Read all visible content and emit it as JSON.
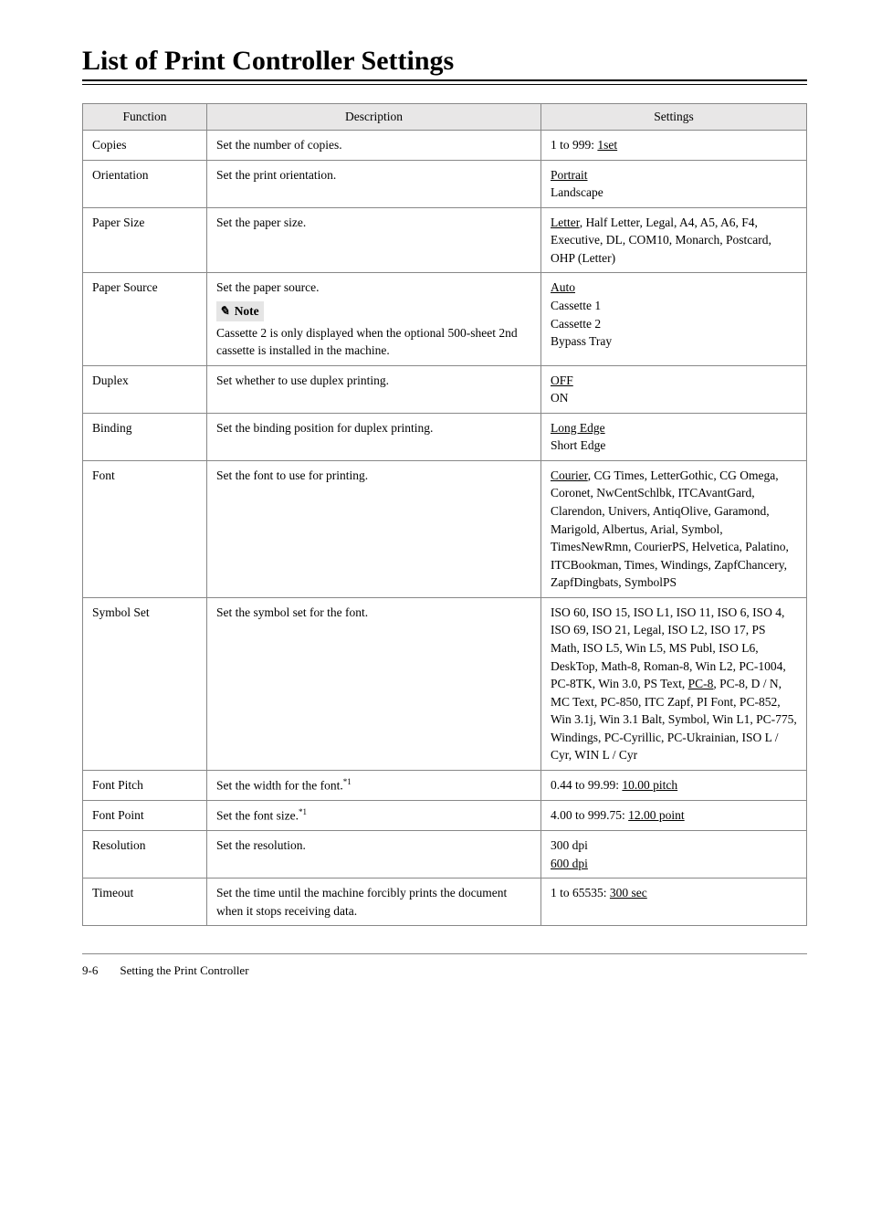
{
  "page_title": "List of Print Controller Settings",
  "columns": [
    "Function",
    "Description",
    "Settings"
  ],
  "rows": {
    "copies": {
      "fn": "Copies",
      "desc": "Set the number of copies.",
      "settings_pre": "1 to 999: ",
      "settings_u": "1set"
    },
    "orientation": {
      "fn": "Orientation",
      "desc": "Set the print orientation.",
      "s_u": "Portrait",
      "s_rest": "Landscape"
    },
    "papersize": {
      "fn": "Paper Size",
      "desc": "Set the paper size.",
      "s_u": "Letter",
      "s_rest": ", Half Letter, Legal, A4, A5, A6, F4, Executive, DL, COM10, Monarch, Postcard, OHP (Letter)"
    },
    "papersource": {
      "fn": "Paper Source",
      "desc_1": "Set the paper source.",
      "note_label": "Note",
      "desc_2": "Cassette 2 is only displayed when the optional 500-sheet 2nd cassette is installed in the machine.",
      "s_u": "Auto",
      "s_rest": "Cassette 1\nCassette 2\nBypass Tray"
    },
    "duplex": {
      "fn": "Duplex",
      "desc": "Set whether to use duplex printing.",
      "s_u": "OFF",
      "s_rest": "ON"
    },
    "binding": {
      "fn": "Binding",
      "desc": "Set the binding position for duplex printing.",
      "s_u": "Long Edge",
      "s_rest": "Short Edge"
    },
    "font": {
      "fn": "Font",
      "desc": "Set the font to use for printing.",
      "s_u": "Courier",
      "s_rest": ", CG Times, LetterGothic, CG Omega, Coronet, NwCentSchlbk, ITCAvantGard, Clarendon, Univers, AntiqOlive, Garamond, Marigold, Albertus, Arial, Symbol, TimesNewRmn, CourierPS, Helvetica, Palatino, ITCBookman, Times, Windings, ZapfChancery, ZapfDingbats, SymbolPS"
    },
    "symbolset": {
      "fn": "Symbol Set",
      "desc": "Set the symbol set for the font.",
      "s_pre": "ISO 60, ISO 15, ISO L1, ISO 11, ISO 6, ISO 4, ISO 69, ISO 21, Legal, ISO L2, ISO 17, PS Math, ISO L5, Win L5, MS Publ, ISO L6, DeskTop, Math-8, Roman-8, Win L2, PC-1004, PC-8TK, Win 3.0, PS Text, ",
      "s_u": "PC-8",
      "s_post": ", PC-8, D / N, MC Text, PC-850, ITC Zapf, PI Font, PC-852, Win 3.1j, Win 3.1 Balt, Symbol, Win L1, PC-775, Windings, PC-Cyrillic, PC-Ukrainian, ISO L / Cyr, WIN L / Cyr"
    },
    "fontpitch": {
      "fn": "Font Pitch",
      "desc": "Set the width for the font.",
      "fnote": "*1",
      "s_pre": "0.44 to 99.99: ",
      "s_u": "10.00 pitch"
    },
    "fontpoint": {
      "fn": "Font Point",
      "desc": "Set the font size.",
      "fnote": "*1",
      "s_pre": "4.00 to 999.75: ",
      "s_u": "12.00 point"
    },
    "resolution": {
      "fn": "Resolution",
      "desc": "Set the resolution.",
      "s_pre": "300 dpi",
      "s_u": "600 dpi"
    },
    "timeout": {
      "fn": "Timeout",
      "desc": "Set the time until the machine forcibly prints the document when it stops receiving data.",
      "s_pre": "1 to 65535: ",
      "s_u": "300 sec"
    }
  },
  "footer": {
    "pagenum": "9-6",
    "section": "Setting the Print Controller"
  }
}
